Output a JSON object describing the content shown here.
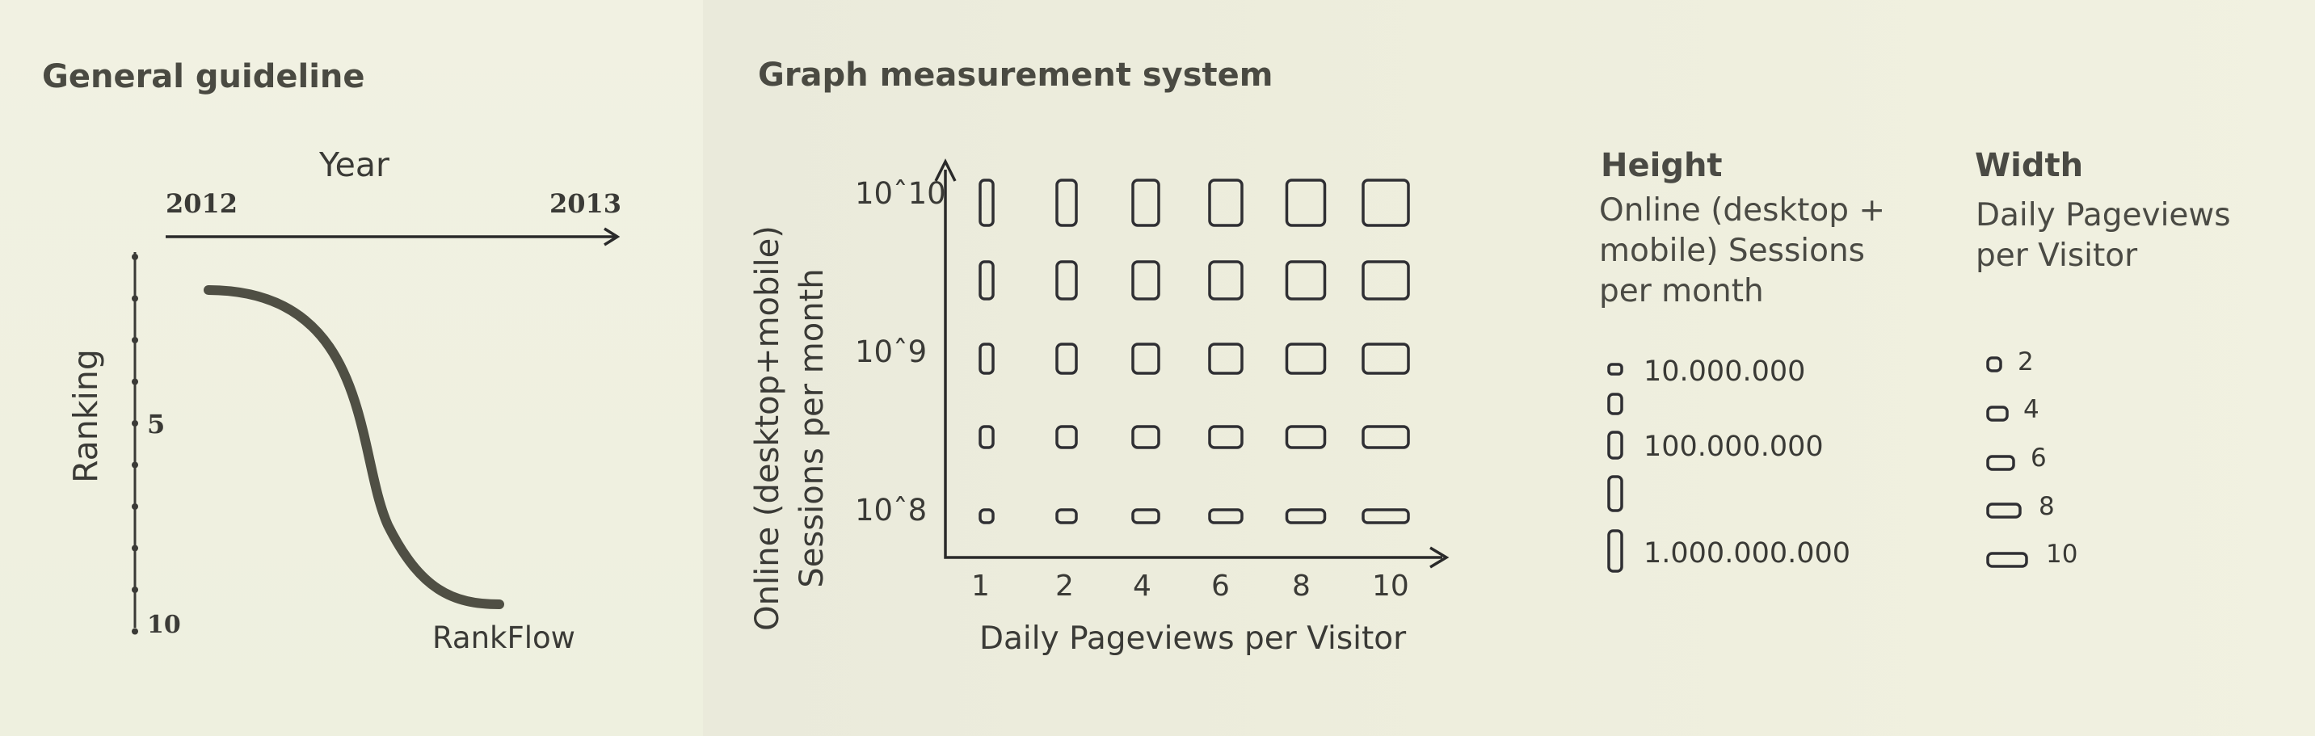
{
  "general": {
    "title": "General guideline",
    "year_label": "Year",
    "year_start": "2012",
    "year_end": "2013",
    "ranking_label": "Ranking",
    "rank_mid": "5",
    "rank_end": "10",
    "curve_label": "RankFlow"
  },
  "graph": {
    "title": "Graph measurement system",
    "y_axis_label_line1": "Online (desktop+mobile)",
    "y_axis_label_line2": "Sessions per month",
    "x_axis_label": "Daily Pageviews per Visitor",
    "y_ticks": [
      "10ˆ10",
      "10ˆ9",
      "10ˆ8"
    ],
    "x_ticks": [
      "1",
      "2",
      "4",
      "6",
      "8",
      "10"
    ]
  },
  "legend_height": {
    "title": "Height",
    "subtitle": "Online (desktop + mobile) Sessions per month",
    "entries": [
      "10.000.000",
      "100.000.000",
      "1.000.000.000"
    ]
  },
  "legend_width": {
    "title": "Width",
    "subtitle": "Daily Pageviews per Visitor",
    "entries": [
      "2",
      "4",
      "6",
      "8",
      "10"
    ]
  },
  "colors": {
    "background": "#f1f1e2",
    "stroke": "#2f2f33",
    "curve": "#4f4f44"
  }
}
